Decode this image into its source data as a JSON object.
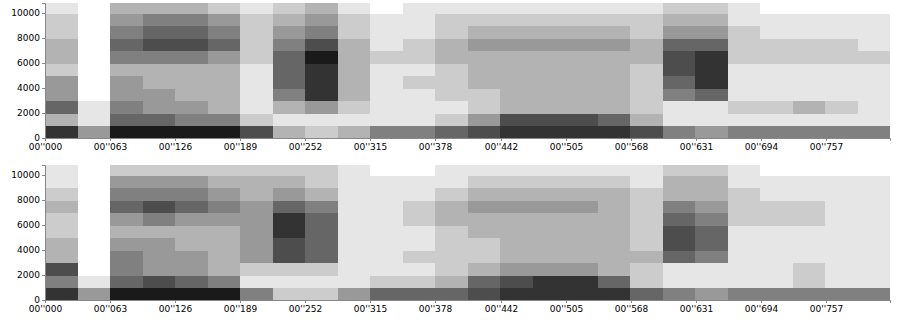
{
  "chart_data": [
    {
      "type": "heatmap",
      "color": "#000000",
      "grid": false,
      "xlim": [
        0,
        0.819
      ],
      "ylim": [
        0,
        10800
      ],
      "zlim": [
        0,
        1
      ],
      "xticks": [
        {
          "value": 0,
          "label": "00''000"
        },
        {
          "value": 0.063,
          "label": "00''063"
        },
        {
          "value": 0.126,
          "label": "00''126"
        },
        {
          "value": 0.189,
          "label": "00''189"
        },
        {
          "value": 0.252,
          "label": "00''252"
        },
        {
          "value": 0.315,
          "label": "00''315"
        },
        {
          "value": 0.378,
          "label": "00''378"
        },
        {
          "value": 0.442,
          "label": "00''442"
        },
        {
          "value": 0.505,
          "label": "00''505"
        },
        {
          "value": 0.568,
          "label": "00''568"
        },
        {
          "value": 0.631,
          "label": "00''631"
        },
        {
          "value": 0.694,
          "label": "00''694"
        },
        {
          "value": 0.757,
          "label": "00''757"
        }
      ],
      "yticks": [
        0,
        2000,
        4000,
        6000,
        8000,
        10000
      ],
      "x_bins": [
        0,
        0.0315,
        0.063,
        0.0945,
        0.126,
        0.1575,
        0.189,
        0.2205,
        0.252,
        0.2835,
        0.315,
        0.3465,
        0.378,
        0.4095,
        0.441,
        0.4725,
        0.504,
        0.5355,
        0.567,
        0.5985,
        0.63,
        0.6615,
        0.693,
        0.7245,
        0.756,
        0.7875,
        0.819
      ],
      "y_bins": [
        0,
        1000,
        2000,
        3000,
        4000,
        5000,
        6000,
        7000,
        8000,
        9000,
        10000,
        10800
      ],
      "cells": [
        [
          0.8,
          0.3,
          0.6,
          0.4,
          0.4,
          0.2,
          0.3,
          0.3,
          0.2,
          0.2,
          0.1
        ],
        [
          0.4,
          0.1,
          0.1,
          0,
          0,
          0,
          0,
          0,
          0,
          0,
          0
        ],
        [
          0.9,
          0.6,
          0.5,
          0.4,
          0.4,
          0.3,
          0.5,
          0.6,
          0.5,
          0.4,
          0.3
        ],
        [
          0.9,
          0.6,
          0.4,
          0.4,
          0.3,
          0.3,
          0.5,
          0.7,
          0.6,
          0.5,
          0.3
        ],
        [
          0.9,
          0.5,
          0.4,
          0.3,
          0.3,
          0.3,
          0.5,
          0.7,
          0.6,
          0.5,
          0.3
        ],
        [
          0.9,
          0.5,
          0.3,
          0.3,
          0.3,
          0.3,
          0.4,
          0.6,
          0.5,
          0.4,
          0.2
        ],
        [
          0.7,
          0.2,
          0.1,
          0.1,
          0.1,
          0.1,
          0.2,
          0.2,
          0.2,
          0.2,
          0.1
        ],
        [
          0.3,
          0.1,
          0.3,
          0.5,
          0.6,
          0.6,
          0.6,
          0.5,
          0.4,
          0.3,
          0.2
        ],
        [
          0.2,
          0.1,
          0.4,
          0.8,
          0.8,
          0.8,
          0.9,
          0.7,
          0.5,
          0.4,
          0.3
        ],
        [
          0.3,
          0.1,
          0.2,
          0.3,
          0.3,
          0.3,
          0.3,
          0.3,
          0.2,
          0.2,
          0.1
        ],
        [
          0.5,
          0.1,
          0.1,
          0.1,
          0.1,
          0.1,
          0.2,
          0.1,
          0.1,
          0.1,
          0
        ],
        [
          0.5,
          0.1,
          0.1,
          0.1,
          0.2,
          0.1,
          0.2,
          0.2,
          0.1,
          0.1,
          0.1
        ],
        [
          0.6,
          0.2,
          0.1,
          0.2,
          0.2,
          0.2,
          0.3,
          0.3,
          0.2,
          0.2,
          0.1
        ],
        [
          0.7,
          0.4,
          0.2,
          0.2,
          0.3,
          0.3,
          0.3,
          0.4,
          0.3,
          0.2,
          0.1
        ],
        [
          0.8,
          0.7,
          0.3,
          0.3,
          0.3,
          0.3,
          0.3,
          0.4,
          0.3,
          0.2,
          0.1
        ],
        [
          0.8,
          0.7,
          0.3,
          0.3,
          0.3,
          0.3,
          0.3,
          0.4,
          0.3,
          0.2,
          0.1
        ],
        [
          0.8,
          0.7,
          0.3,
          0.3,
          0.3,
          0.3,
          0.3,
          0.4,
          0.3,
          0.2,
          0.1
        ],
        [
          0.8,
          0.6,
          0.3,
          0.3,
          0.3,
          0.3,
          0.3,
          0.4,
          0.3,
          0.2,
          0.1
        ],
        [
          0.7,
          0.3,
          0.2,
          0.2,
          0.2,
          0.2,
          0.3,
          0.3,
          0.2,
          0.2,
          0.1
        ],
        [
          0.5,
          0.1,
          0.1,
          0.5,
          0.6,
          0.7,
          0.7,
          0.6,
          0.4,
          0.3,
          0.2
        ],
        [
          0.4,
          0.1,
          0.1,
          0.6,
          0.8,
          0.8,
          0.8,
          0.6,
          0.4,
          0.3,
          0.2
        ],
        [
          0.5,
          0.1,
          0.2,
          0.1,
          0.1,
          0.1,
          0.2,
          0.2,
          0.2,
          0.1,
          0.1
        ],
        [
          0.5,
          0.1,
          0.2,
          0.1,
          0.1,
          0.1,
          0.2,
          0.2,
          0.1,
          0.1,
          0
        ],
        [
          0.5,
          0.1,
          0.3,
          0.1,
          0.1,
          0.1,
          0.2,
          0.2,
          0.1,
          0.1,
          0
        ],
        [
          0.5,
          0.1,
          0.2,
          0.1,
          0.1,
          0.1,
          0.2,
          0.2,
          0.1,
          0.1,
          0
        ],
        [
          0.5,
          0.1,
          0.1,
          0.1,
          0.1,
          0.1,
          0.2,
          0.1,
          0.1,
          0.1,
          0
        ]
      ]
    },
    {
      "type": "heatmap",
      "color": "#000000",
      "grid": false,
      "xlim": [
        0,
        0.819
      ],
      "ylim": [
        0,
        10800
      ],
      "zlim": [
        0,
        1
      ],
      "xticks": [
        {
          "value": 0,
          "label": "00''000"
        },
        {
          "value": 0.063,
          "label": "00''063"
        },
        {
          "value": 0.126,
          "label": "00''126"
        },
        {
          "value": 0.189,
          "label": "00''189"
        },
        {
          "value": 0.252,
          "label": "00''252"
        },
        {
          "value": 0.315,
          "label": "00''315"
        },
        {
          "value": 0.378,
          "label": "00''378"
        },
        {
          "value": 0.442,
          "label": "00''442"
        },
        {
          "value": 0.505,
          "label": "00''505"
        },
        {
          "value": 0.568,
          "label": "00''568"
        },
        {
          "value": 0.631,
          "label": "00''631"
        },
        {
          "value": 0.694,
          "label": "00''694"
        },
        {
          "value": 0.757,
          "label": "00''757"
        }
      ],
      "yticks": [
        0,
        2000,
        4000,
        6000,
        8000,
        10000
      ],
      "x_bins": [
        0,
        0.0315,
        0.063,
        0.0945,
        0.126,
        0.1575,
        0.189,
        0.2205,
        0.252,
        0.2835,
        0.315,
        0.3465,
        0.378,
        0.4095,
        0.441,
        0.4725,
        0.504,
        0.5355,
        0.567,
        0.5985,
        0.63,
        0.6615,
        0.693,
        0.7245,
        0.756,
        0.7875,
        0.819
      ],
      "y_bins": [
        0,
        1000,
        2000,
        3000,
        4000,
        5000,
        6000,
        7000,
        8000,
        9000,
        10000,
        10800
      ],
      "cells": [
        [
          0.8,
          0.5,
          0.7,
          0.3,
          0.3,
          0.2,
          0.2,
          0.3,
          0.2,
          0.1,
          0.1
        ],
        [
          0.4,
          0.1,
          0,
          0,
          0,
          0,
          0,
          0,
          0,
          0,
          0
        ],
        [
          0.9,
          0.6,
          0.5,
          0.5,
          0.4,
          0.3,
          0.4,
          0.6,
          0.5,
          0.4,
          0.2
        ],
        [
          0.9,
          0.7,
          0.4,
          0.4,
          0.4,
          0.3,
          0.5,
          0.7,
          0.5,
          0.4,
          0.2
        ],
        [
          0.9,
          0.6,
          0.4,
          0.4,
          0.3,
          0.3,
          0.4,
          0.6,
          0.5,
          0.4,
          0.2
        ],
        [
          0.9,
          0.5,
          0.3,
          0.3,
          0.3,
          0.3,
          0.4,
          0.5,
          0.4,
          0.3,
          0.2
        ],
        [
          0.5,
          0.1,
          0.2,
          0.4,
          0.4,
          0.4,
          0.4,
          0.4,
          0.3,
          0.3,
          0.2
        ],
        [
          0.2,
          0.1,
          0.2,
          0.7,
          0.7,
          0.8,
          0.8,
          0.6,
          0.4,
          0.3,
          0.2
        ],
        [
          0.2,
          0.1,
          0.2,
          0.6,
          0.6,
          0.6,
          0.6,
          0.5,
          0.3,
          0.2,
          0.2
        ],
        [
          0.4,
          0.1,
          0.1,
          0.1,
          0.1,
          0.1,
          0.1,
          0.1,
          0.1,
          0.1,
          0.1
        ],
        [
          0.6,
          0.2,
          0.1,
          0.1,
          0.1,
          0.1,
          0.1,
          0.1,
          0.1,
          0.1,
          0
        ],
        [
          0.6,
          0.2,
          0.1,
          0.2,
          0.1,
          0.1,
          0.2,
          0.2,
          0.1,
          0.1,
          0
        ],
        [
          0.6,
          0.3,
          0.2,
          0.2,
          0.2,
          0.2,
          0.3,
          0.3,
          0.2,
          0.1,
          0.1
        ],
        [
          0.7,
          0.6,
          0.3,
          0.2,
          0.2,
          0.3,
          0.3,
          0.4,
          0.3,
          0.2,
          0.1
        ],
        [
          0.8,
          0.7,
          0.4,
          0.3,
          0.3,
          0.3,
          0.3,
          0.4,
          0.3,
          0.2,
          0.1
        ],
        [
          0.8,
          0.8,
          0.4,
          0.3,
          0.3,
          0.3,
          0.3,
          0.4,
          0.3,
          0.2,
          0.1
        ],
        [
          0.8,
          0.8,
          0.4,
          0.3,
          0.3,
          0.3,
          0.3,
          0.4,
          0.3,
          0.2,
          0.1
        ],
        [
          0.8,
          0.6,
          0.3,
          0.3,
          0.3,
          0.3,
          0.3,
          0.3,
          0.3,
          0.2,
          0.1
        ],
        [
          0.6,
          0.2,
          0.2,
          0.3,
          0.2,
          0.2,
          0.2,
          0.2,
          0.2,
          0.1,
          0.1
        ],
        [
          0.5,
          0.1,
          0.1,
          0.6,
          0.7,
          0.7,
          0.6,
          0.5,
          0.3,
          0.3,
          0.2
        ],
        [
          0.4,
          0.1,
          0.1,
          0.5,
          0.6,
          0.6,
          0.5,
          0.4,
          0.3,
          0.3,
          0.2
        ],
        [
          0.5,
          0.1,
          0.1,
          0.1,
          0.1,
          0.1,
          0.2,
          0.2,
          0.2,
          0.1,
          0.1
        ],
        [
          0.5,
          0.1,
          0.1,
          0.1,
          0.1,
          0.1,
          0.2,
          0.2,
          0.1,
          0.1,
          0
        ],
        [
          0.5,
          0.2,
          0.2,
          0.1,
          0.1,
          0.1,
          0.2,
          0.2,
          0.1,
          0.1,
          0
        ],
        [
          0.5,
          0.1,
          0.1,
          0.1,
          0.1,
          0.1,
          0.1,
          0.1,
          0.1,
          0.1,
          0
        ],
        [
          0.5,
          0.1,
          0.1,
          0.1,
          0.1,
          0.1,
          0.1,
          0.1,
          0.1,
          0.1,
          0
        ]
      ]
    }
  ]
}
